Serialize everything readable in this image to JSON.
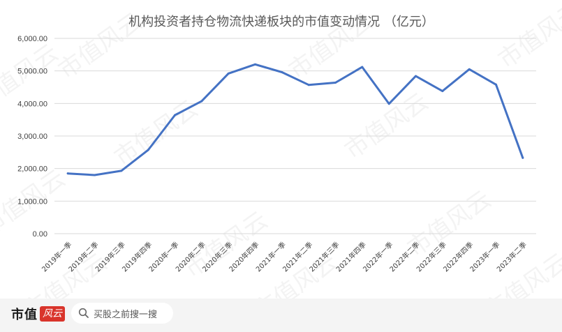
{
  "chart_data": {
    "type": "line",
    "title": "机构投资者持仓物流快递板块的市值变动情况 （亿元）",
    "categories": [
      "2019年一季",
      "2019年二季",
      "2019年三季",
      "2019年四季",
      "2020年一季",
      "2020年二季",
      "2020年三季",
      "2020年四季",
      "2021年一季",
      "2021年二季",
      "2021年三季",
      "2021年四季",
      "2022年一季",
      "2022年二季",
      "2022年三季",
      "2022年四季",
      "2023年一季",
      "2023年二季"
    ],
    "values": [
      1850,
      1800,
      1930,
      2570,
      3640,
      4070,
      4920,
      5200,
      4960,
      4570,
      4640,
      5120,
      3990,
      4840,
      4380,
      5050,
      4580,
      2330
    ],
    "y_ticks": [
      "0.00",
      "1,000.00",
      "2,000.00",
      "3,000.00",
      "4,000.00",
      "5,000.00",
      "6,000.00"
    ],
    "ylim": [
      0,
      6000
    ],
    "grid": true,
    "legend": false,
    "line_color": "#4472c4"
  },
  "watermark": {
    "text": "市值风云"
  },
  "footer": {
    "brand": "市值",
    "brand_seal": "风云",
    "search_placeholder": "买股之前搜一搜",
    "search_icon": "search-icon"
  }
}
